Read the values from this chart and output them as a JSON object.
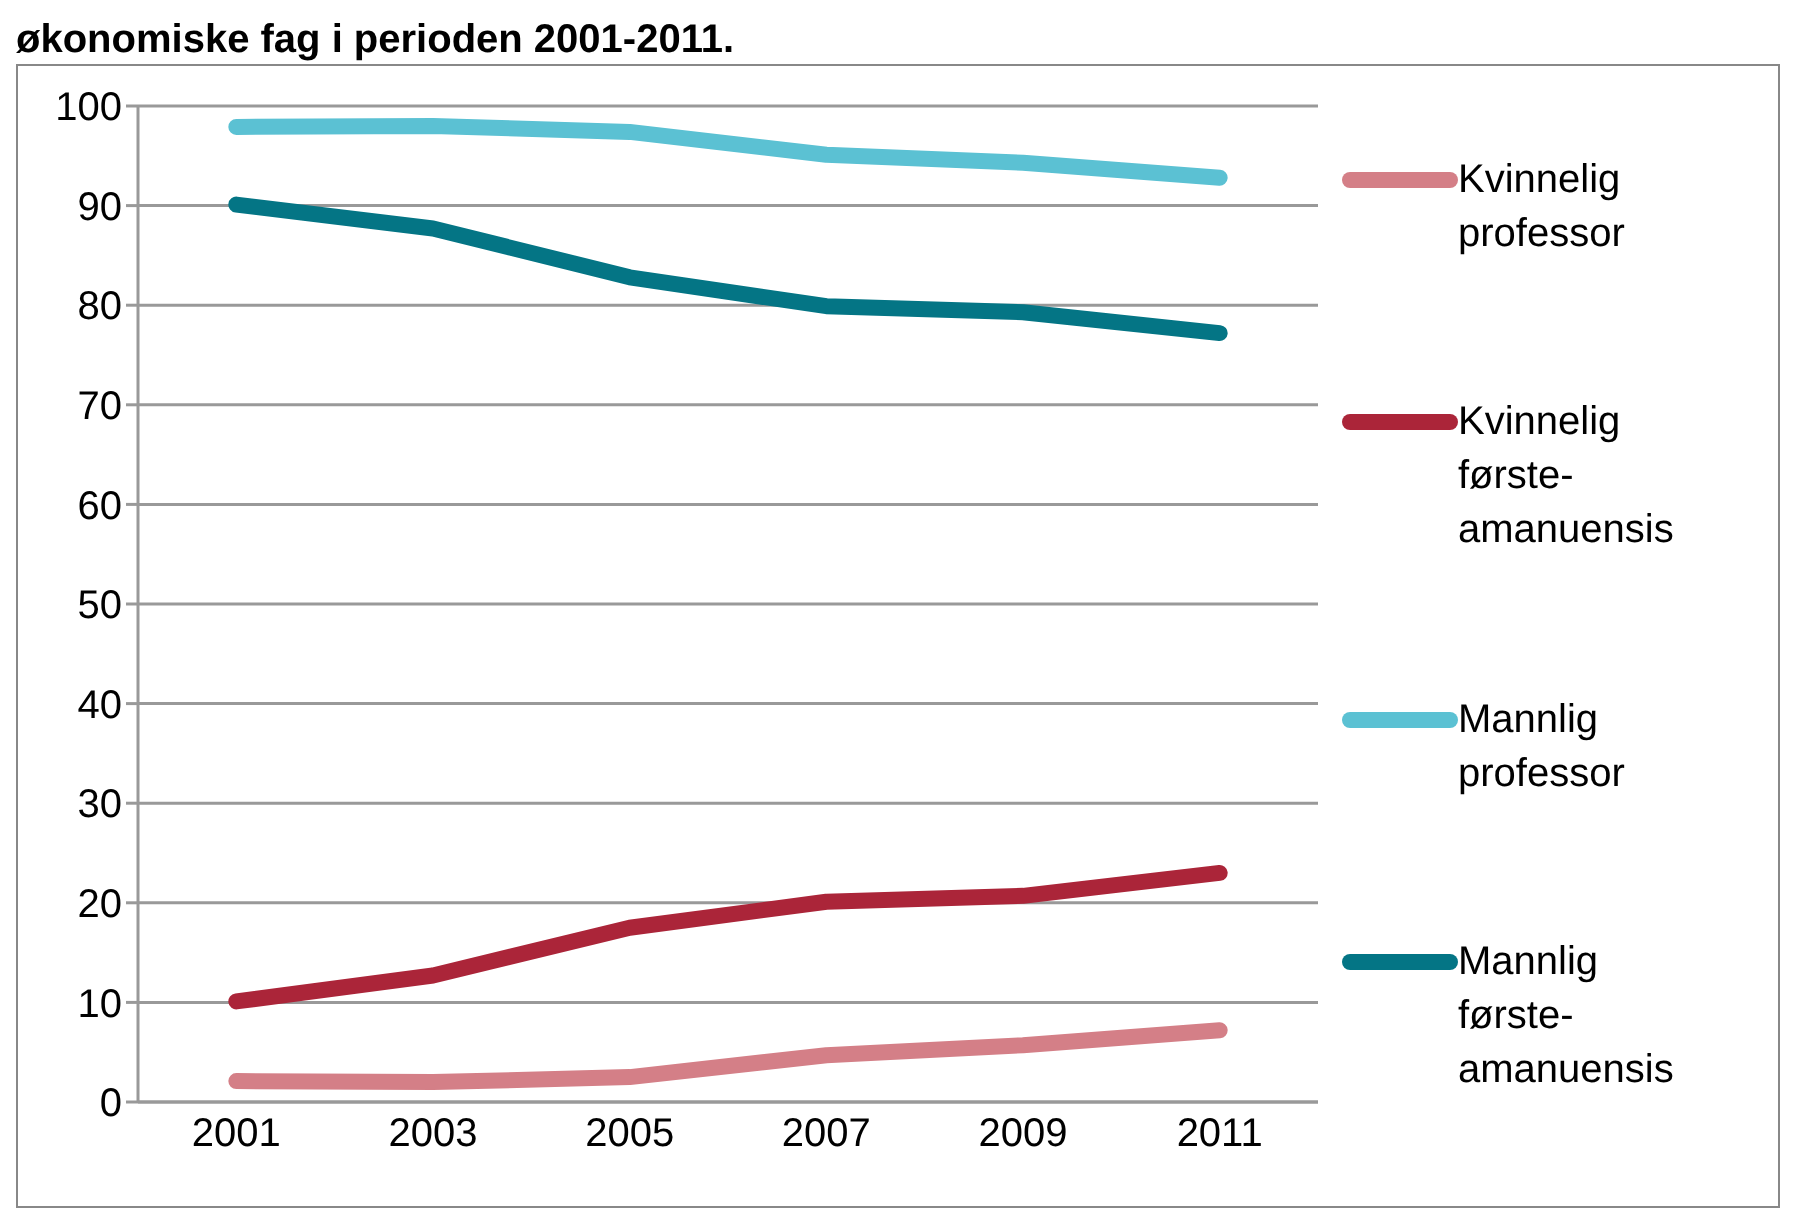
{
  "chart_data": {
    "type": "line",
    "title": "økonomiske fag i perioden 2001-2011.",
    "categories": [
      "2001",
      "2003",
      "2005",
      "2007",
      "2009",
      "2011"
    ],
    "series": [
      {
        "name": "Kvinnelig professor",
        "color": "#d47f87",
        "values": [
          2.1,
          2.0,
          2.5,
          4.7,
          5.7,
          7.2
        ]
      },
      {
        "name": "Kvinnelig første-amanuensis",
        "color": "#ab2539",
        "values": [
          10.1,
          12.7,
          17.5,
          20.1,
          20.7,
          23.0
        ]
      },
      {
        "name": "Mannlig professor",
        "color": "#5bc1d3",
        "values": [
          97.9,
          98.0,
          97.4,
          95.1,
          94.3,
          92.8
        ]
      },
      {
        "name": "Mannlig første-amanuensis",
        "color": "#047585",
        "values": [
          90.1,
          87.7,
          82.8,
          79.9,
          79.3,
          77.2
        ]
      }
    ],
    "ylim": [
      0,
      100
    ],
    "yticks": [
      0,
      10,
      20,
      30,
      40,
      50,
      60,
      70,
      80,
      90,
      100
    ],
    "grid": "y",
    "legend": "right",
    "marker": "none",
    "line_style": "solid"
  }
}
